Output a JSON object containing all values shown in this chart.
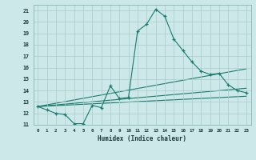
{
  "xlabel": "Humidex (Indice chaleur)",
  "background_color": "#cce8e8",
  "grid_color": "#aacccc",
  "line_color": "#1a7a6e",
  "xlim": [
    -0.5,
    23.5
  ],
  "ylim": [
    11,
    21.5
  ],
  "yticks": [
    11,
    12,
    13,
    14,
    15,
    16,
    17,
    18,
    19,
    20,
    21
  ],
  "xticks": [
    0,
    1,
    2,
    3,
    4,
    5,
    6,
    7,
    8,
    9,
    10,
    11,
    12,
    13,
    14,
    15,
    16,
    17,
    18,
    19,
    20,
    21,
    22,
    23
  ],
  "line1_x": [
    0,
    1,
    2,
    3,
    4,
    5,
    6,
    7,
    8,
    9,
    10,
    11,
    12,
    13,
    14,
    15,
    16,
    17,
    18,
    19,
    20,
    21,
    22,
    23
  ],
  "line1_y": [
    12.6,
    12.3,
    12.0,
    11.9,
    11.1,
    11.1,
    12.7,
    12.5,
    14.4,
    13.3,
    13.4,
    19.2,
    19.8,
    21.1,
    20.5,
    18.5,
    17.5,
    16.5,
    15.7,
    15.4,
    15.5,
    14.5,
    14.0,
    13.8
  ],
  "line2_x": [
    0,
    23
  ],
  "line2_y": [
    12.6,
    13.5
  ],
  "line3_x": [
    0,
    23
  ],
  "line3_y": [
    12.6,
    14.2
  ],
  "line4_x": [
    0,
    23
  ],
  "line4_y": [
    12.6,
    15.9
  ]
}
